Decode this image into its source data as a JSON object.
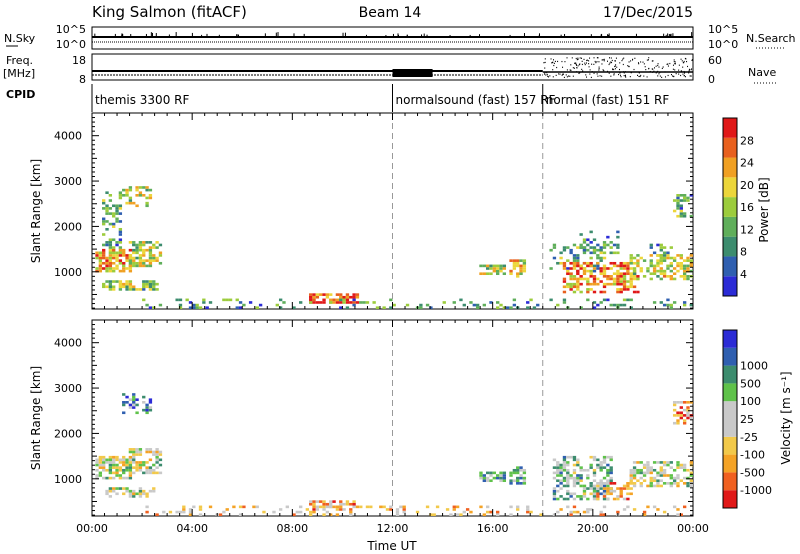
{
  "header": {
    "station": "King Salmon (fitACF)",
    "beam": "Beam 14",
    "date": "17/Dec/2015"
  },
  "side_labels": {
    "nsky": "N.Sky",
    "freq_line1": "Freq.",
    "freq_line2": "[MHz]",
    "cpid": "CPID",
    "nsearch": "N.Search",
    "nave": "Nave"
  },
  "strip_ticks": {
    "noise_left_top": "10^5",
    "noise_left_bottom": "10^0",
    "noise_right_top": "10^5",
    "noise_right_bottom": "10^0",
    "freq_top": "18",
    "freq_bottom": "8",
    "nave_top": "60",
    "nave_bottom": "0"
  },
  "cpid_labels": [
    {
      "text": "themis 3300 RF",
      "start": 0
    },
    {
      "text": "normalsound (fast) 157 RF",
      "start": 12
    },
    {
      "text": "normal (fast) 151 RF",
      "start": 18
    }
  ],
  "colors": {
    "power": [
      "#2b2bd6",
      "#2f5fb0",
      "#3c8c6e",
      "#5fae5a",
      "#9ccc3c",
      "#ecd63a",
      "#f0a023",
      "#e8601e",
      "#e01818"
    ],
    "velocity": [
      "#e01818",
      "#f06020",
      "#f4a326",
      "#f2c94a",
      "#c9c9c9",
      "#c9c9c9",
      "#5fc24a",
      "#3c8c6e",
      "#2f5fb0",
      "#2b2bd6"
    ],
    "cpid_divider": "#999999"
  },
  "chart_data": [
    {
      "type": "heatmap",
      "panel": "power",
      "ylabel": "Slant Range [km]",
      "xlabel": "",
      "ylim": [
        180,
        4500
      ],
      "xlim": [
        0,
        24
      ],
      "y_ticks": [
        "1000",
        "2000",
        "3000",
        "4000"
      ],
      "y_tick_values": [
        1000,
        2000,
        3000,
        4000
      ],
      "colorbar": {
        "title": "Power [dB]",
        "ticks": [
          "4",
          "8",
          "12",
          "16",
          "20",
          "24",
          "28"
        ],
        "tick_values": [
          4,
          8,
          12,
          16,
          20,
          24,
          28
        ],
        "range": [
          0,
          32
        ]
      },
      "patches": [
        {
          "t0": 0.5,
          "t1": 1.2,
          "r0": 1500,
          "r1": 2800,
          "level": 0.35,
          "density": 0.4
        },
        {
          "t0": 1.2,
          "t1": 2.3,
          "r0": 2400,
          "r1": 2900,
          "level": 0.55,
          "density": 0.45
        },
        {
          "t0": 0.2,
          "t1": 1.6,
          "r0": 1000,
          "r1": 1500,
          "level": 0.7,
          "density": 0.75
        },
        {
          "t0": 1.5,
          "t1": 2.7,
          "r0": 1100,
          "r1": 1700,
          "level": 0.5,
          "density": 0.65
        },
        {
          "t0": 0.5,
          "t1": 2.6,
          "r0": 600,
          "r1": 800,
          "level": 0.45,
          "density": 0.6
        },
        {
          "t0": 8.7,
          "t1": 10.6,
          "r0": 300,
          "r1": 550,
          "level": 0.9,
          "density": 0.7
        },
        {
          "t0": 15.5,
          "t1": 16.5,
          "r0": 950,
          "r1": 1150,
          "level": 0.55,
          "density": 0.7
        },
        {
          "t0": 16.7,
          "t1": 17.3,
          "r0": 900,
          "r1": 1300,
          "level": 0.6,
          "density": 0.7
        },
        {
          "t0": 18.3,
          "t1": 20.5,
          "r0": 1000,
          "r1": 1600,
          "level": 0.35,
          "density": 0.3
        },
        {
          "t0": 18.8,
          "t1": 21.8,
          "r0": 500,
          "r1": 1200,
          "level": 0.75,
          "density": 0.55
        },
        {
          "t0": 19.5,
          "t1": 21.0,
          "r0": 1400,
          "r1": 1900,
          "level": 0.3,
          "density": 0.2
        },
        {
          "t0": 21.5,
          "t1": 24.0,
          "r0": 800,
          "r1": 1400,
          "level": 0.55,
          "density": 0.5
        },
        {
          "t0": 23.3,
          "t1": 24.0,
          "r0": 2200,
          "r1": 2700,
          "level": 0.35,
          "density": 0.55
        },
        {
          "t0": 22.4,
          "t1": 23.2,
          "r0": 1200,
          "r1": 1600,
          "level": 0.35,
          "density": 0.3
        },
        {
          "t0": 2.0,
          "t1": 24.0,
          "r0": 200,
          "r1": 400,
          "level": 0.3,
          "density": 0.18
        }
      ]
    },
    {
      "type": "heatmap",
      "panel": "velocity",
      "ylabel": "Slant Range [km]",
      "xlabel": "Time UT",
      "ylim": [
        180,
        4500
      ],
      "xlim": [
        0,
        24
      ],
      "x_ticks": [
        "00:00",
        "04:00",
        "08:00",
        "12:00",
        "16:00",
        "20:00",
        "00:00"
      ],
      "x_tick_values": [
        0,
        4,
        8,
        12,
        16,
        20,
        24
      ],
      "y_ticks": [
        "1000",
        "2000",
        "3000",
        "4000"
      ],
      "y_tick_values": [
        1000,
        2000,
        3000,
        4000
      ],
      "colorbar": {
        "title": "Velocity [m s⁻¹]",
        "ticks": [
          "-1000",
          "-500",
          "-100",
          "-25",
          "25",
          "100",
          "500",
          "1000"
        ]
      },
      "patches": [
        {
          "t0": 0.2,
          "t1": 1.6,
          "r0": 1000,
          "r1": 1500,
          "level": 0.5,
          "density": 0.75
        },
        {
          "t0": 1.5,
          "t1": 2.7,
          "r0": 1100,
          "r1": 1700,
          "level": 0.5,
          "density": 0.6
        },
        {
          "t0": 0.6,
          "t1": 2.5,
          "r0": 600,
          "r1": 800,
          "level": 0.5,
          "density": 0.55
        },
        {
          "t0": 1.2,
          "t1": 2.3,
          "r0": 2400,
          "r1": 2900,
          "level": 0.75,
          "density": 0.45
        },
        {
          "t0": 8.7,
          "t1": 10.6,
          "r0": 300,
          "r1": 550,
          "level": 0.3,
          "density": 0.6
        },
        {
          "t0": 15.5,
          "t1": 16.5,
          "r0": 950,
          "r1": 1150,
          "level": 0.65,
          "density": 0.7
        },
        {
          "t0": 16.7,
          "t1": 17.3,
          "r0": 900,
          "r1": 1300,
          "level": 0.65,
          "density": 0.7
        },
        {
          "t0": 18.5,
          "t1": 20.8,
          "r0": 500,
          "r1": 1500,
          "level": 0.62,
          "density": 0.5
        },
        {
          "t0": 20.0,
          "t1": 21.5,
          "r0": 500,
          "r1": 900,
          "level": 0.3,
          "density": 0.5
        },
        {
          "t0": 21.5,
          "t1": 24.0,
          "r0": 800,
          "r1": 1400,
          "level": 0.5,
          "density": 0.55
        },
        {
          "t0": 23.3,
          "t1": 24.0,
          "r0": 2200,
          "r1": 2700,
          "level": 0.25,
          "density": 0.6
        },
        {
          "t0": 2.0,
          "t1": 24.0,
          "r0": 200,
          "r1": 400,
          "level": 0.35,
          "density": 0.18
        }
      ]
    }
  ]
}
